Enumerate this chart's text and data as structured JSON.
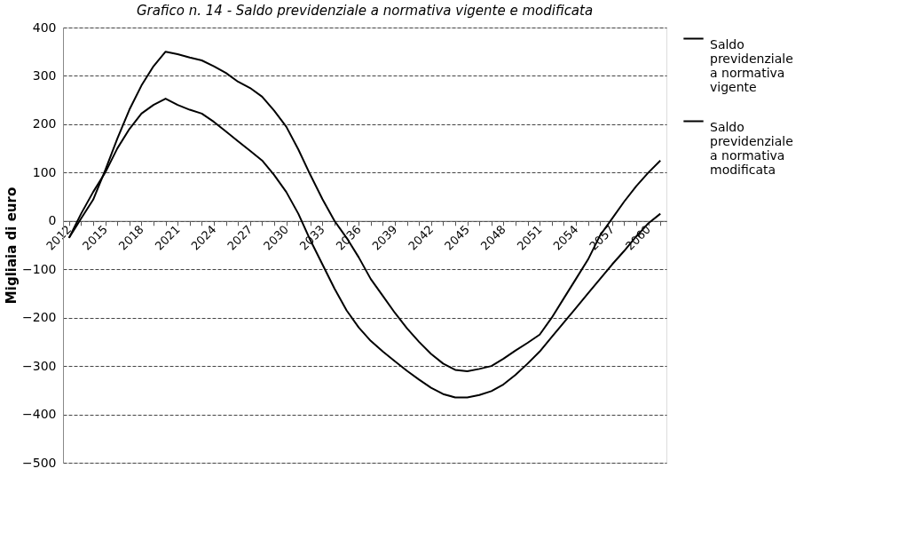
{
  "chart_data": {
    "type": "line",
    "title": "Grafico n. 14 - Saldo previdenziale a normativa vigente e modificata",
    "ylabel": "Migliaia di euro",
    "categories": [
      "2012",
      null,
      null,
      "2015",
      null,
      null,
      "2018",
      null,
      null,
      "2021",
      null,
      null,
      "2024",
      null,
      null,
      "2027",
      null,
      null,
      "2030",
      null,
      null,
      "2033",
      null,
      null,
      "2036",
      null,
      null,
      "2039",
      null,
      null,
      "2042",
      null,
      null,
      "2045",
      null,
      null,
      "2048",
      null,
      null,
      "2051",
      null,
      null,
      "2054",
      null,
      null,
      "2057",
      null,
      null,
      "2060",
      null
    ],
    "series": [
      {
        "name": "Saldo previdenziale a normativa vigente",
        "color": "#000000",
        "values": [
          -35,
          5,
          44,
          105,
          170,
          230,
          280,
          320,
          350,
          345,
          338,
          332,
          320,
          306,
          288,
          275,
          257,
          228,
          195,
          148,
          95,
          45,
          0,
          -35,
          -75,
          -120,
          -155,
          -190,
          -222,
          -250,
          -275,
          -295,
          -308,
          -311,
          -306,
          -300,
          -285,
          -268,
          -252,
          -235,
          -200,
          -160,
          -120,
          -80,
          -30,
          5,
          40,
          72,
          100,
          125
        ]
      },
      {
        "name": "Saldo previdenziale a normativa modificata",
        "color": "#000000",
        "values": [
          -35,
          15,
          60,
          100,
          150,
          190,
          222,
          240,
          253,
          240,
          230,
          222,
          205,
          185,
          165,
          145,
          125,
          95,
          60,
          15,
          -40,
          -90,
          -140,
          -185,
          -220,
          -248,
          -270,
          -290,
          -310,
          -328,
          -345,
          -358,
          -365,
          -365,
          -360,
          -352,
          -338,
          -318,
          -295,
          -270,
          -240,
          -210,
          -180,
          -150,
          -120,
          -90,
          -62,
          -32,
          -5,
          15
        ]
      }
    ],
    "ylim": [
      -500,
      400
    ],
    "yticks": [
      -500,
      -400,
      -300,
      -200,
      -100,
      0,
      100,
      200,
      300,
      400
    ],
    "grid": "y",
    "legend": "right",
    "marker": "none",
    "line_style": "solid"
  }
}
